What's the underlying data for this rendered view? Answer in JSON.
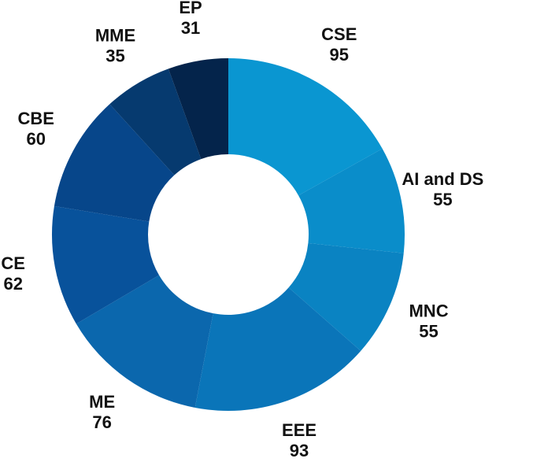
{
  "chart_data": {
    "type": "donut",
    "categories": [
      "CSE",
      "AI and DS",
      "MNC",
      "EEE",
      "ME",
      "CE",
      "CBE",
      "MME",
      "EP"
    ],
    "values": [
      95,
      55,
      55,
      93,
      76,
      62,
      60,
      35,
      31
    ],
    "colors": [
      "#0a96d1",
      "#0a8dca",
      "#0a83c2",
      "#0a75b9",
      "#0b67ad",
      "#08529b",
      "#07468a",
      "#063a6f",
      "#04244b"
    ]
  }
}
